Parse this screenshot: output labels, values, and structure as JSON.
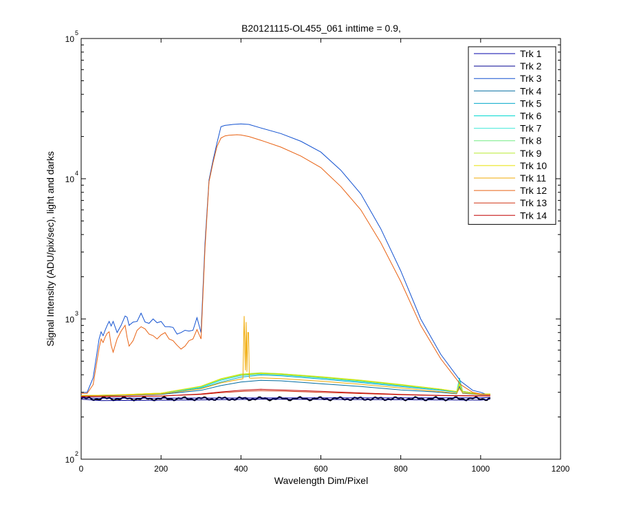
{
  "chart_data": {
    "type": "line",
    "title": "B20121115-OL455_061 inttime = 0.9,",
    "xlabel": "Wavelength Dim/Pixel",
    "ylabel": "Signal Intensity (ADU/pix/sec), light and darks",
    "xlim": [
      0,
      1200
    ],
    "ylim": [
      100,
      100000
    ],
    "yscale": "log",
    "grid": false,
    "legend_position": "top-right",
    "x_ticks": [
      0,
      200,
      400,
      600,
      800,
      1000,
      1200
    ],
    "y_ticks": [
      {
        "value": 100,
        "base": "10",
        "exp": "2"
      },
      {
        "value": 1000,
        "base": "10",
        "exp": "3"
      },
      {
        "value": 10000,
        "base": "10",
        "exp": "4"
      },
      {
        "value": 100000,
        "base": "10",
        "exp": "5"
      }
    ],
    "series": [
      {
        "name": "Trk 1",
        "color": "#0000a8",
        "x": [
          0,
          20,
          40,
          700,
          1000,
          1024
        ],
        "y": [
          275,
          273,
          272,
          274,
          274,
          276
        ]
      },
      {
        "name": "Trk 2",
        "color": "#000090",
        "x": [
          0,
          50,
          300,
          450,
          700,
          1000,
          1024
        ],
        "y": [
          268,
          262,
          265,
          268,
          266,
          264,
          268
        ]
      },
      {
        "name": "Trk 3",
        "color": "#1050d0",
        "x": [
          0,
          15,
          30,
          45,
          50,
          55,
          60,
          65,
          70,
          75,
          80,
          90,
          100,
          110,
          115,
          120,
          130,
          140,
          150,
          160,
          170,
          180,
          190,
          200,
          210,
          220,
          230,
          240,
          250,
          260,
          270,
          280,
          290,
          300,
          310,
          320,
          330,
          340,
          350,
          360,
          370,
          380,
          390,
          400,
          420,
          450,
          500,
          550,
          600,
          650,
          700,
          750,
          800,
          850,
          900,
          950,
          980,
          1000,
          1015,
          1024
        ],
        "y": [
          300,
          300,
          380,
          720,
          810,
          760,
          830,
          900,
          960,
          890,
          960,
          800,
          900,
          1050,
          1030,
          900,
          950,
          960,
          1100,
          950,
          930,
          1000,
          940,
          960,
          880,
          880,
          870,
          780,
          800,
          830,
          820,
          830,
          1020,
          800,
          3500,
          9800,
          13500,
          18000,
          23500,
          24000,
          24200,
          24400,
          24500,
          24600,
          24400,
          23000,
          21000,
          18500,
          15500,
          11500,
          7800,
          4400,
          2200,
          1000,
          560,
          360,
          310,
          300,
          290,
          290
        ]
      },
      {
        "name": "Trk 4",
        "color": "#006aa0",
        "x": [
          0,
          100,
          200,
          300,
          350,
          400,
          450,
          500,
          600,
          700,
          800,
          900,
          940,
          947,
          955,
          1000,
          1024
        ],
        "y": [
          282,
          285,
          290,
          310,
          335,
          355,
          365,
          362,
          345,
          330,
          312,
          300,
          293,
          330,
          295,
          288,
          288
        ]
      },
      {
        "name": "Trk 5",
        "color": "#00a8c8",
        "x": [
          0,
          100,
          200,
          300,
          350,
          400,
          450,
          500,
          600,
          700,
          800,
          900,
          940,
          947,
          955,
          1000,
          1024
        ],
        "y": [
          283,
          286,
          292,
          320,
          355,
          385,
          398,
          393,
          373,
          352,
          330,
          310,
          300,
          380,
          302,
          290,
          290
        ]
      },
      {
        "name": "Trk 6",
        "color": "#00d8d0",
        "x": [
          0,
          100,
          200,
          300,
          350,
          400,
          450,
          500,
          600,
          700,
          800,
          900,
          940,
          947,
          955,
          1000,
          1024
        ],
        "y": [
          284,
          287,
          294,
          325,
          365,
          395,
          405,
          400,
          380,
          358,
          335,
          313,
          302,
          370,
          304,
          291,
          291
        ]
      },
      {
        "name": "Trk 7",
        "color": "#40e8d8",
        "x": [
          0,
          100,
          200,
          300,
          350,
          400,
          450,
          500,
          600,
          700,
          800,
          900,
          940,
          947,
          955,
          1000,
          1024
        ],
        "y": [
          284,
          287,
          294,
          328,
          370,
          400,
          410,
          404,
          384,
          362,
          338,
          314,
          303,
          365,
          305,
          292,
          292
        ]
      },
      {
        "name": "Trk 8",
        "color": "#70ec80",
        "x": [
          0,
          100,
          200,
          300,
          350,
          400,
          450,
          500,
          600,
          700,
          800,
          900,
          940,
          947,
          955,
          1000,
          1024
        ],
        "y": [
          284,
          288,
          296,
          330,
          373,
          404,
          413,
          407,
          387,
          365,
          340,
          316,
          304,
          360,
          305,
          292,
          292
        ]
      },
      {
        "name": "Trk 9",
        "color": "#b8ec30",
        "x": [
          0,
          100,
          200,
          300,
          350,
          400,
          450,
          500,
          600,
          700,
          800,
          900,
          940,
          947,
          955,
          1000,
          1024
        ],
        "y": [
          284,
          288,
          296,
          332,
          375,
          405,
          412,
          407,
          388,
          366,
          341,
          316,
          304,
          345,
          305,
          292,
          292
        ]
      },
      {
        "name": "Trk 10",
        "color": "#e8e000",
        "x": [
          0,
          100,
          200,
          300,
          350,
          400,
          450,
          500,
          600,
          700,
          800,
          900,
          940,
          947,
          955,
          1000,
          1024
        ],
        "y": [
          284,
          288,
          296,
          330,
          372,
          400,
          408,
          403,
          384,
          363,
          338,
          315,
          303,
          340,
          304,
          291,
          291
        ]
      },
      {
        "name": "Trk 11",
        "color": "#f0a800",
        "x": [
          0,
          100,
          200,
          300,
          350,
          405,
          408,
          411,
          413,
          415,
          417,
          419,
          421,
          425,
          450,
          500,
          600,
          700,
          800,
          900,
          940,
          947,
          955,
          1000,
          1024
        ],
        "y": [
          283,
          286,
          292,
          318,
          350,
          375,
          1050,
          430,
          950,
          420,
          800,
          800,
          380,
          378,
          380,
          376,
          360,
          342,
          322,
          303,
          295,
          320,
          297,
          289,
          289
        ]
      },
      {
        "name": "Trk 12",
        "color": "#e86010",
        "x": [
          0,
          15,
          30,
          45,
          50,
          55,
          60,
          65,
          70,
          75,
          80,
          90,
          100,
          110,
          115,
          120,
          130,
          140,
          150,
          160,
          170,
          180,
          190,
          200,
          210,
          220,
          230,
          240,
          250,
          260,
          270,
          280,
          290,
          300,
          310,
          320,
          330,
          340,
          350,
          360,
          370,
          380,
          390,
          400,
          420,
          450,
          500,
          550,
          600,
          650,
          700,
          750,
          800,
          850,
          900,
          950,
          980,
          1000,
          1015,
          1024
        ],
        "y": [
          295,
          295,
          340,
          620,
          720,
          680,
          740,
          790,
          810,
          650,
          580,
          720,
          820,
          900,
          740,
          640,
          700,
          830,
          880,
          850,
          780,
          760,
          720,
          770,
          800,
          720,
          700,
          650,
          610,
          640,
          700,
          720,
          840,
          720,
          3200,
          9500,
          13000,
          17000,
          19500,
          20200,
          20400,
          20500,
          20600,
          20500,
          20000,
          18800,
          16800,
          14500,
          12000,
          8800,
          6000,
          3500,
          1850,
          900,
          520,
          340,
          300,
          292,
          288,
          288
        ]
      },
      {
        "name": "Trk 13",
        "color": "#d03010",
        "x": [
          0,
          100,
          200,
          300,
          350,
          400,
          450,
          500,
          600,
          700,
          800,
          900,
          1000,
          1024
        ],
        "y": [
          280,
          281,
          282,
          290,
          298,
          304,
          308,
          306,
          300,
          294,
          288,
          284,
          282,
          282
        ]
      },
      {
        "name": "Trk 14",
        "color": "#c00000",
        "x": [
          0,
          100,
          200,
          300,
          350,
          400,
          450,
          500,
          600,
          700,
          800,
          900,
          1000,
          1024
        ],
        "y": [
          279,
          280,
          282,
          292,
          302,
          310,
          315,
          312,
          305,
          297,
          290,
          285,
          283,
          283
        ]
      }
    ],
    "dark_series": {
      "color": "#000000",
      "x": [
        0,
        1024
      ],
      "y": [
        270,
        270
      ]
    }
  }
}
